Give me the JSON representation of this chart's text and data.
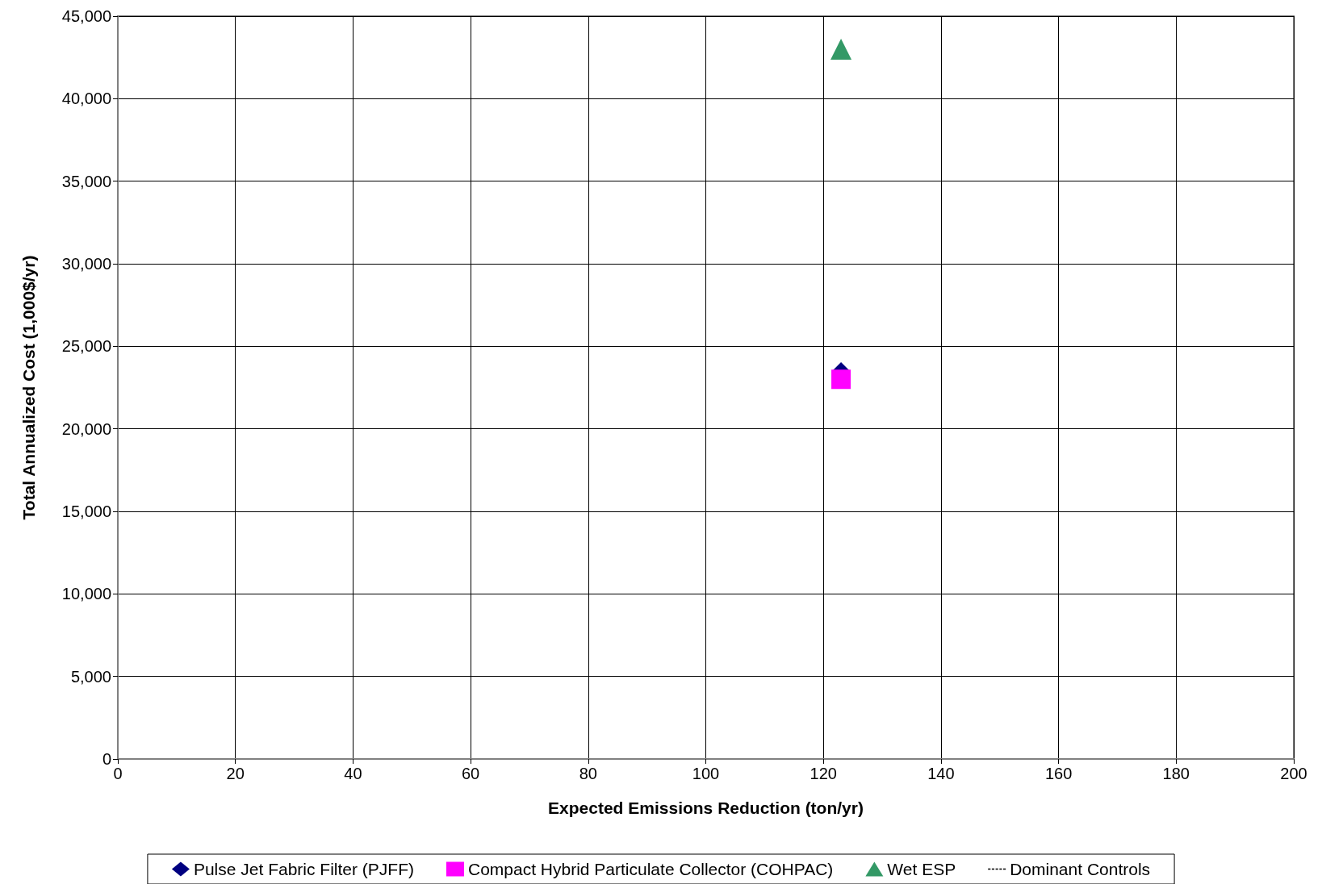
{
  "chart_data": {
    "type": "scatter",
    "xlabel": "Expected Emissions Reduction (ton/yr)",
    "ylabel": "Total Annualized Cost (1,000$/yr)",
    "xlim": [
      0,
      200
    ],
    "xticks": [
      0,
      20,
      40,
      60,
      80,
      100,
      120,
      140,
      160,
      180,
      200
    ],
    "ylim": [
      0,
      45000
    ],
    "yticks": [
      {
        "value": 0,
        "label": "0"
      },
      {
        "value": 5000,
        "label": "5,000"
      },
      {
        "value": 10000,
        "label": "10,000"
      },
      {
        "value": 15000,
        "label": "15,000"
      },
      {
        "value": 20000,
        "label": "20,000"
      },
      {
        "value": 25000,
        "label": "25,000"
      },
      {
        "value": 30000,
        "label": "30,000"
      },
      {
        "value": 35000,
        "label": "35,000"
      },
      {
        "value": 40000,
        "label": "40,000"
      },
      {
        "value": 45000,
        "label": "45,000"
      }
    ],
    "grid": true,
    "legend": "bottom",
    "x": [
      123
    ],
    "series": [
      {
        "name": "Pulse Jet Fabric Filter (PJFF)",
        "color": "#000080",
        "marker": "diamond",
        "values": [
          23500
        ]
      },
      {
        "name": "Compact Hybrid Particulate Collector (COHPAC)",
        "color": "#ff00ff",
        "marker": "square",
        "values": [
          23000
        ]
      },
      {
        "name": "Wet ESP",
        "color": "#339966",
        "marker": "triangle",
        "values": [
          43000
        ]
      },
      {
        "name": "Dominant Controls",
        "type": "line",
        "color": "#000000",
        "marker": "none",
        "line_style": "dashed",
        "values": [
          null
        ]
      }
    ]
  }
}
